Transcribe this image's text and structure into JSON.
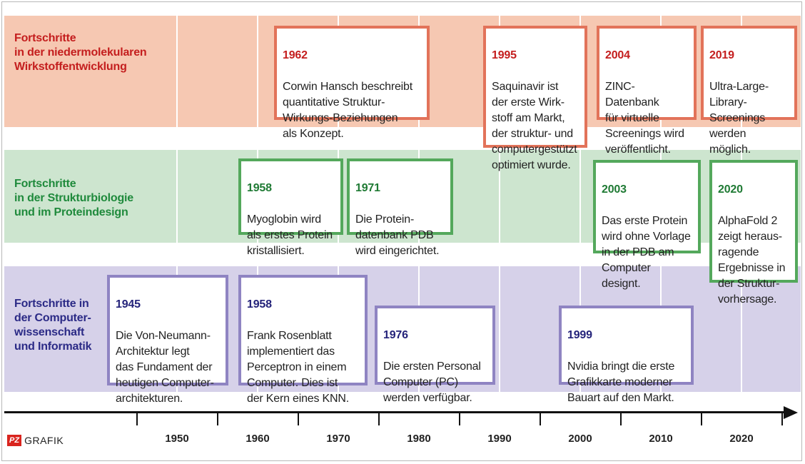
{
  "bands": {
    "red": {
      "label": "Fortschritte\nin der niedermolekularen\nWirkstoffentwicklung",
      "color": "#f6c8b2",
      "text_color": "#c41e1e"
    },
    "green": {
      "label": "Fortschritte\nin der Strukturbiologie\nund im Proteindesign",
      "color": "#cde5cf",
      "text_color": "#1f8a3c"
    },
    "purple": {
      "label": "Fortschritte in\nder Computer-\nwissenschaft\nund Informatik",
      "color": "#d6d1e9",
      "text_color": "#2b2a86"
    }
  },
  "events": {
    "red": [
      {
        "year": "1962",
        "text": "Corwin Hansch beschreibt\nquantitative Struktur-\nWirkungs-Beziehungen\nals Konzept."
      },
      {
        "year": "1995",
        "text": "Saquinavir ist\nder erste Wirk-\nstoff am Markt,\nder struktur- und\ncomputergestützt\noptimiert wurde."
      },
      {
        "year": "2004",
        "text": "ZINC-Datenbank\nfür virtuelle\nScreenings wird\nveröffentlicht."
      },
      {
        "year": "2019",
        "text": "Ultra-Large-\nLibrary-\nScreenings\nwerden möglich."
      }
    ],
    "green": [
      {
        "year": "1958",
        "text": "Myoglobin wird\nals erstes Protein\nkristallisiert."
      },
      {
        "year": "1971",
        "text": "Die Protein-\ndatenbank PDB\nwird eingerichtet."
      },
      {
        "year": "2003",
        "text": "Das erste Protein\nwird ohne Vorlage\nin der PDB am\nComputer designt."
      },
      {
        "year": "2020",
        "text": "AlphaFold 2\nzeigt heraus-\nragende\nErgebnisse in\nder Struktur-\nvorhersage."
      }
    ],
    "purple": [
      {
        "year": "1945",
        "text": "Die Von-Neumann-\nArchitektur legt\ndas Fundament der\nheutigen Computer-\narchitekturen."
      },
      {
        "year": "1958",
        "text": "Frank Rosenblatt\nimplementiert das\nPerceptron in einem\nComputer. Dies ist\nder Kern eines KNN."
      },
      {
        "year": "1976",
        "text": "Die ersten Personal\nComputer (PC)\nwerden verfügbar."
      },
      {
        "year": "1999",
        "text": "Nvidia bringt die erste\nGrafikkarte moderner\nBauart auf den Markt."
      }
    ]
  },
  "axis": {
    "labels": [
      "1950",
      "1960",
      "1970",
      "1980",
      "1990",
      "2000",
      "2010",
      "2020"
    ]
  },
  "logo": {
    "mark": "PZ",
    "text": "GRAFIK",
    "color": "#d9241e"
  }
}
